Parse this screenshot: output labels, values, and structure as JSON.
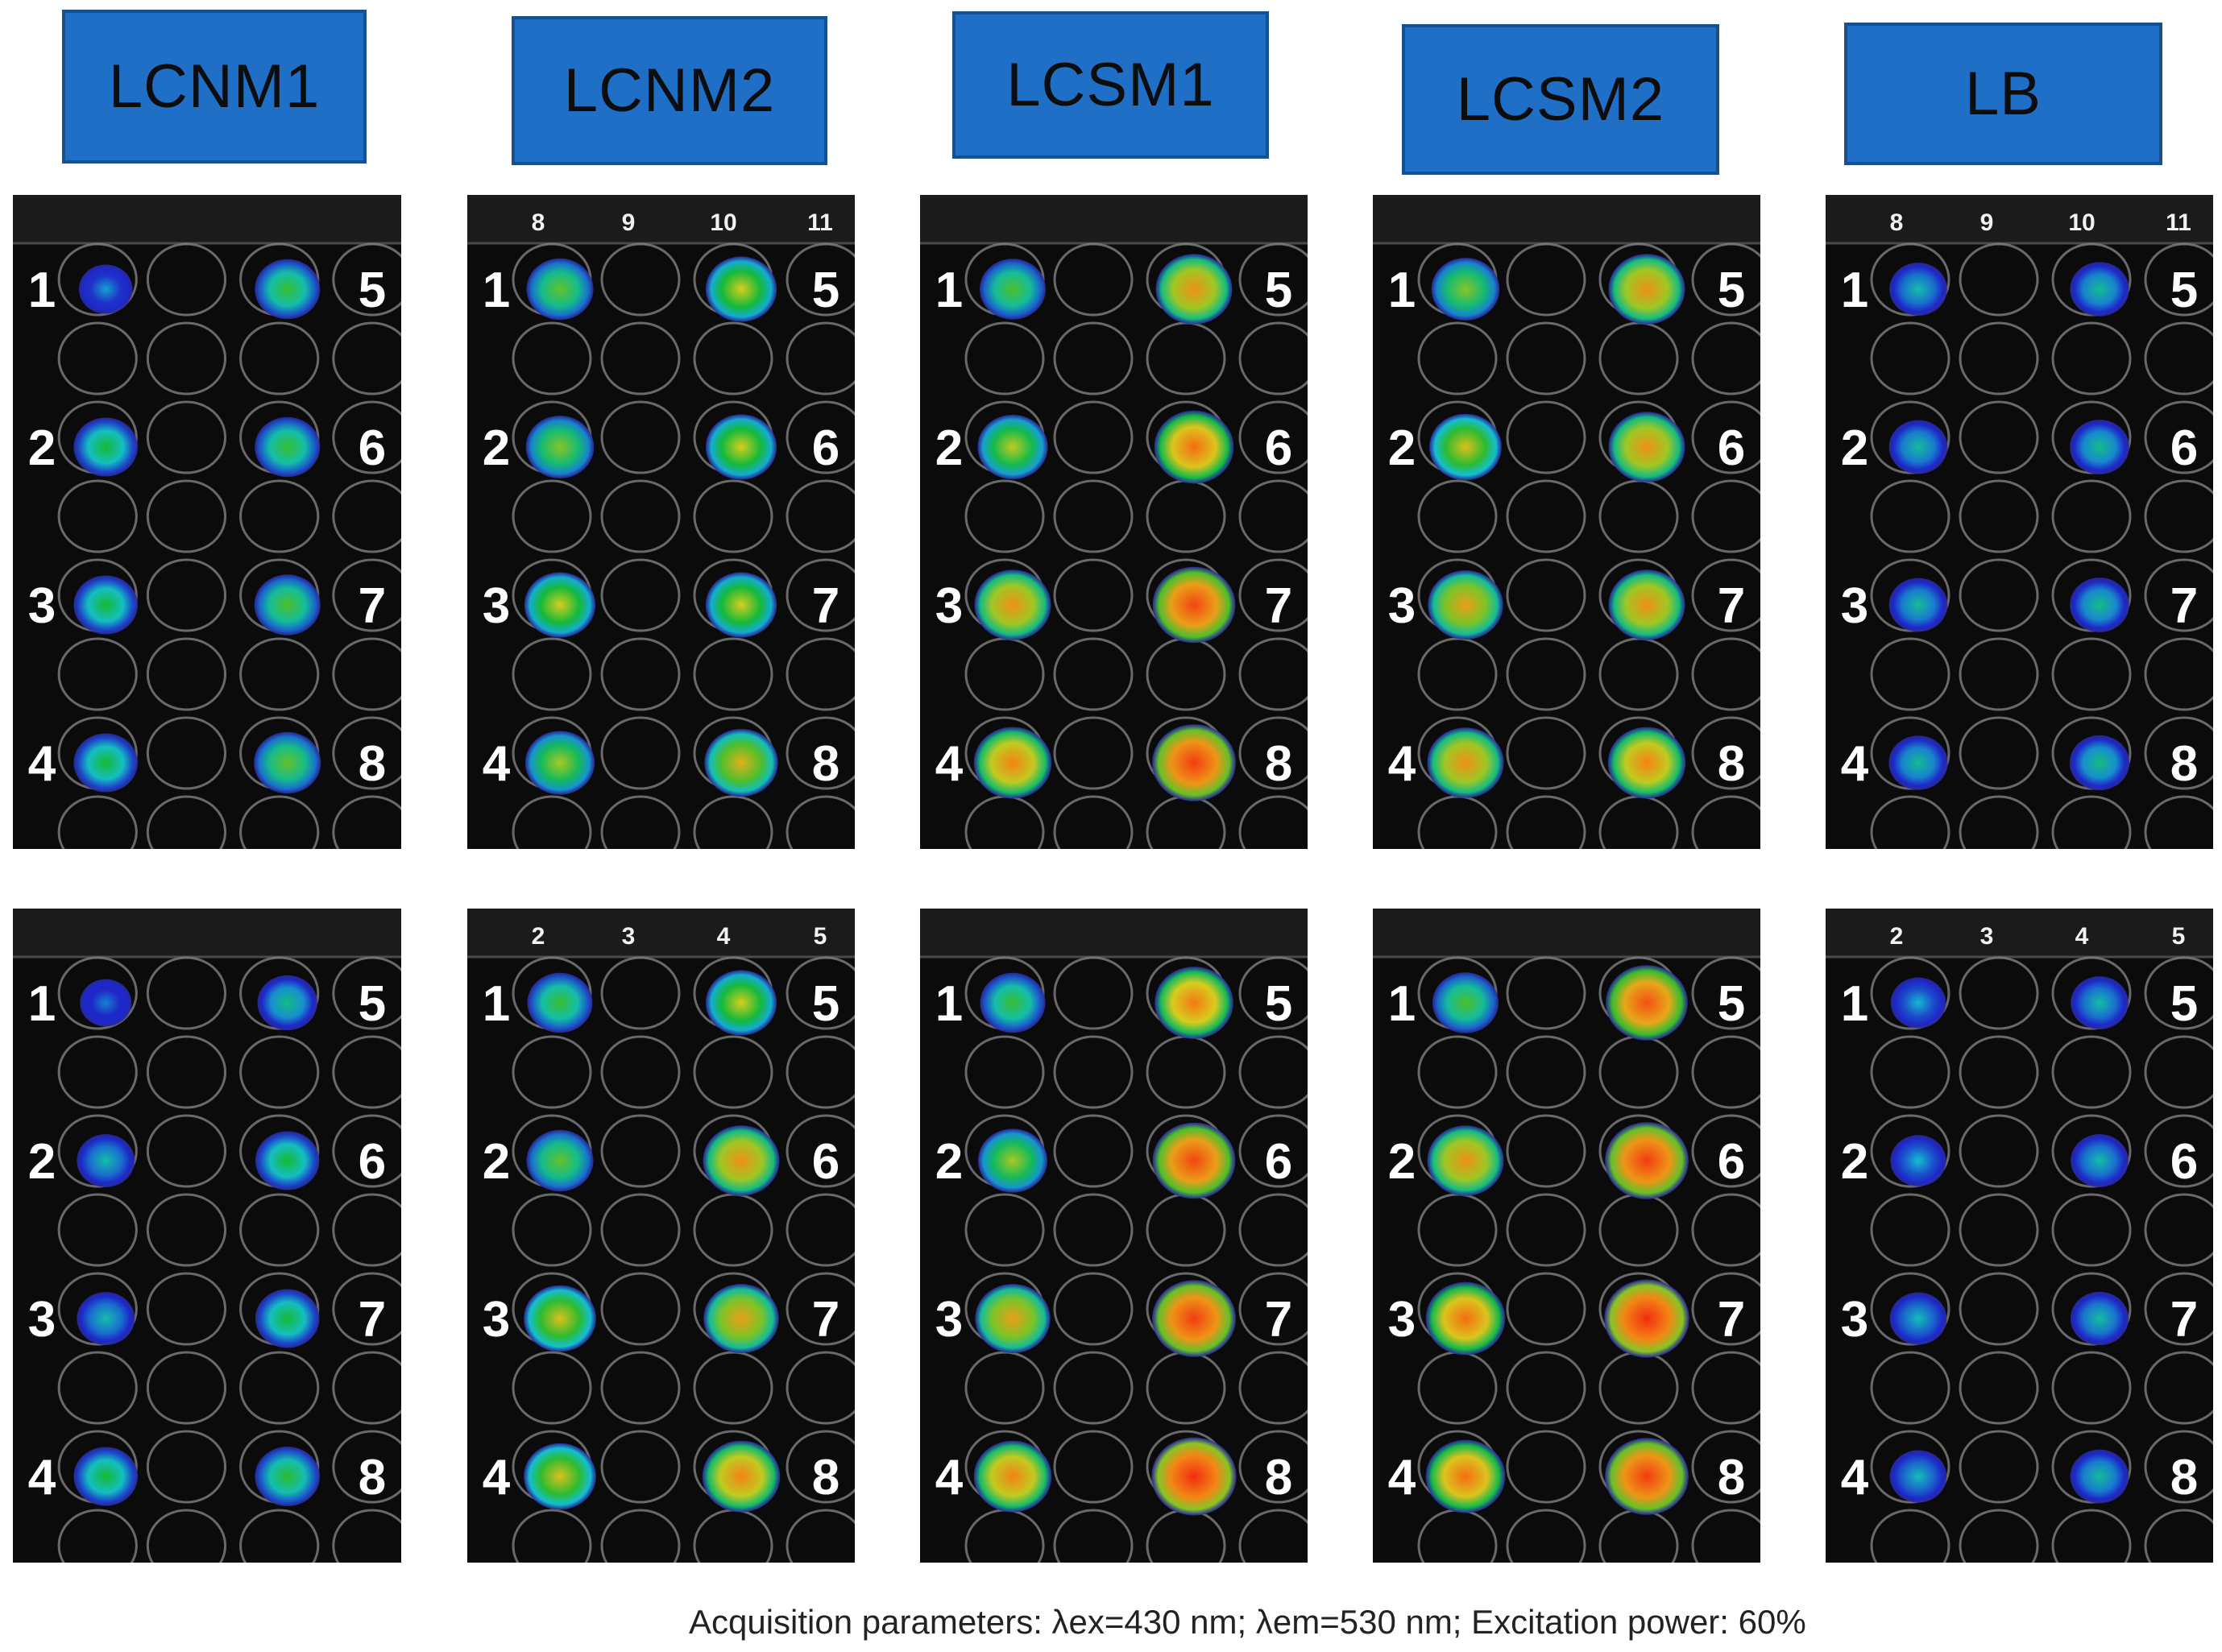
{
  "figure": {
    "caption": "Acquisition parameters: λex=430 nm;  λem=530 nm; Excitation power: 60%"
  },
  "colors": {
    "header_fill": "#1f6fc6",
    "header_border": "#1a4f8f",
    "plate_background": "#0b0b0b"
  },
  "groups": [
    {
      "label": "LCNM1",
      "plates": [
        {
          "column_numbers": [],
          "wells": [
            {
              "label": "1",
              "level": 0.2
            },
            {
              "label": "2",
              "level": 0.45
            },
            {
              "label": "3",
              "level": 0.45
            },
            {
              "label": "4",
              "level": 0.45
            },
            {
              "label": "5",
              "level": 0.48
            },
            {
              "label": "6",
              "level": 0.48
            },
            {
              "label": "7",
              "level": 0.5
            },
            {
              "label": "8",
              "level": 0.52
            }
          ]
        },
        {
          "column_numbers": [],
          "wells": [
            {
              "label": "1",
              "level": 0.15
            },
            {
              "label": "2",
              "level": 0.3
            },
            {
              "label": "3",
              "level": 0.3
            },
            {
              "label": "4",
              "level": 0.45
            },
            {
              "label": "5",
              "level": 0.35
            },
            {
              "label": "6",
              "level": 0.45
            },
            {
              "label": "7",
              "level": 0.45
            },
            {
              "label": "8",
              "level": 0.47
            }
          ]
        }
      ]
    },
    {
      "label": "LCNM2",
      "plates": [
        {
          "column_numbers": [
            "8",
            "9",
            "10",
            "11"
          ],
          "wells": [
            {
              "label": "1",
              "level": 0.52
            },
            {
              "label": "2",
              "level": 0.55
            },
            {
              "label": "3",
              "level": 0.62
            },
            {
              "label": "4",
              "level": 0.58
            },
            {
              "label": "5",
              "level": 0.62
            },
            {
              "label": "6",
              "level": 0.62
            },
            {
              "label": "7",
              "level": 0.62
            },
            {
              "label": "8",
              "level": 0.68
            }
          ]
        },
        {
          "column_numbers": [
            "2",
            "3",
            "4",
            "5"
          ],
          "wells": [
            {
              "label": "1",
              "level": 0.48
            },
            {
              "label": "2",
              "level": 0.52
            },
            {
              "label": "3",
              "level": 0.65
            },
            {
              "label": "4",
              "level": 0.65
            },
            {
              "label": "5",
              "level": 0.62
            },
            {
              "label": "6",
              "level": 0.75
            },
            {
              "label": "7",
              "level": 0.72
            },
            {
              "label": "8",
              "level": 0.78
            }
          ]
        }
      ]
    },
    {
      "label": "LCSM1",
      "plates": [
        {
          "column_numbers": [],
          "wells": [
            {
              "label": "1",
              "level": 0.5
            },
            {
              "label": "2",
              "level": 0.6
            },
            {
              "label": "3",
              "level": 0.75
            },
            {
              "label": "4",
              "level": 0.78
            },
            {
              "label": "5",
              "level": 0.75
            },
            {
              "label": "6",
              "level": 0.82
            },
            {
              "label": "7",
              "level": 0.9
            },
            {
              "label": "8",
              "level": 0.92
            }
          ]
        },
        {
          "column_numbers": [],
          "wells": [
            {
              "label": "1",
              "level": 0.48
            },
            {
              "label": "2",
              "level": 0.58
            },
            {
              "label": "3",
              "level": 0.72
            },
            {
              "label": "4",
              "level": 0.78
            },
            {
              "label": "5",
              "level": 0.8
            },
            {
              "label": "6",
              "level": 0.9
            },
            {
              "label": "7",
              "level": 0.92
            },
            {
              "label": "8",
              "level": 0.95
            }
          ]
        }
      ]
    },
    {
      "label": "LCSM2",
      "plates": [
        {
          "column_numbers": [],
          "wells": [
            {
              "label": "1",
              "level": 0.55
            },
            {
              "label": "2",
              "level": 0.65
            },
            {
              "label": "3",
              "level": 0.72
            },
            {
              "label": "4",
              "level": 0.75
            },
            {
              "label": "5",
              "level": 0.75
            },
            {
              "label": "6",
              "level": 0.75
            },
            {
              "label": "7",
              "level": 0.75
            },
            {
              "label": "8",
              "level": 0.78
            }
          ]
        },
        {
          "column_numbers": [],
          "wells": [
            {
              "label": "1",
              "level": 0.5
            },
            {
              "label": "2",
              "level": 0.75
            },
            {
              "label": "3",
              "level": 0.82
            },
            {
              "label": "4",
              "level": 0.82
            },
            {
              "label": "5",
              "level": 0.88
            },
            {
              "label": "6",
              "level": 0.92
            },
            {
              "label": "7",
              "level": 0.95
            },
            {
              "label": "8",
              "level": 0.92
            }
          ]
        }
      ]
    },
    {
      "label": "LB",
      "plates": [
        {
          "column_numbers": [
            "8",
            "9",
            "10",
            "11"
          ],
          "wells": [
            {
              "label": "1",
              "level": 0.3
            },
            {
              "label": "2",
              "level": 0.32
            },
            {
              "label": "3",
              "level": 0.32
            },
            {
              "label": "4",
              "level": 0.33
            },
            {
              "label": "5",
              "level": 0.33
            },
            {
              "label": "6",
              "level": 0.34
            },
            {
              "label": "7",
              "level": 0.34
            },
            {
              "label": "8",
              "level": 0.35
            }
          ]
        },
        {
          "column_numbers": [
            "2",
            "3",
            "4",
            "5"
          ],
          "wells": [
            {
              "label": "1",
              "level": 0.24
            },
            {
              "label": "2",
              "level": 0.25
            },
            {
              "label": "3",
              "level": 0.28
            },
            {
              "label": "4",
              "level": 0.28
            },
            {
              "label": "5",
              "level": 0.3
            },
            {
              "label": "6",
              "level": 0.3
            },
            {
              "label": "7",
              "level": 0.31
            },
            {
              "label": "8",
              "level": 0.32
            }
          ]
        }
      ]
    }
  ]
}
